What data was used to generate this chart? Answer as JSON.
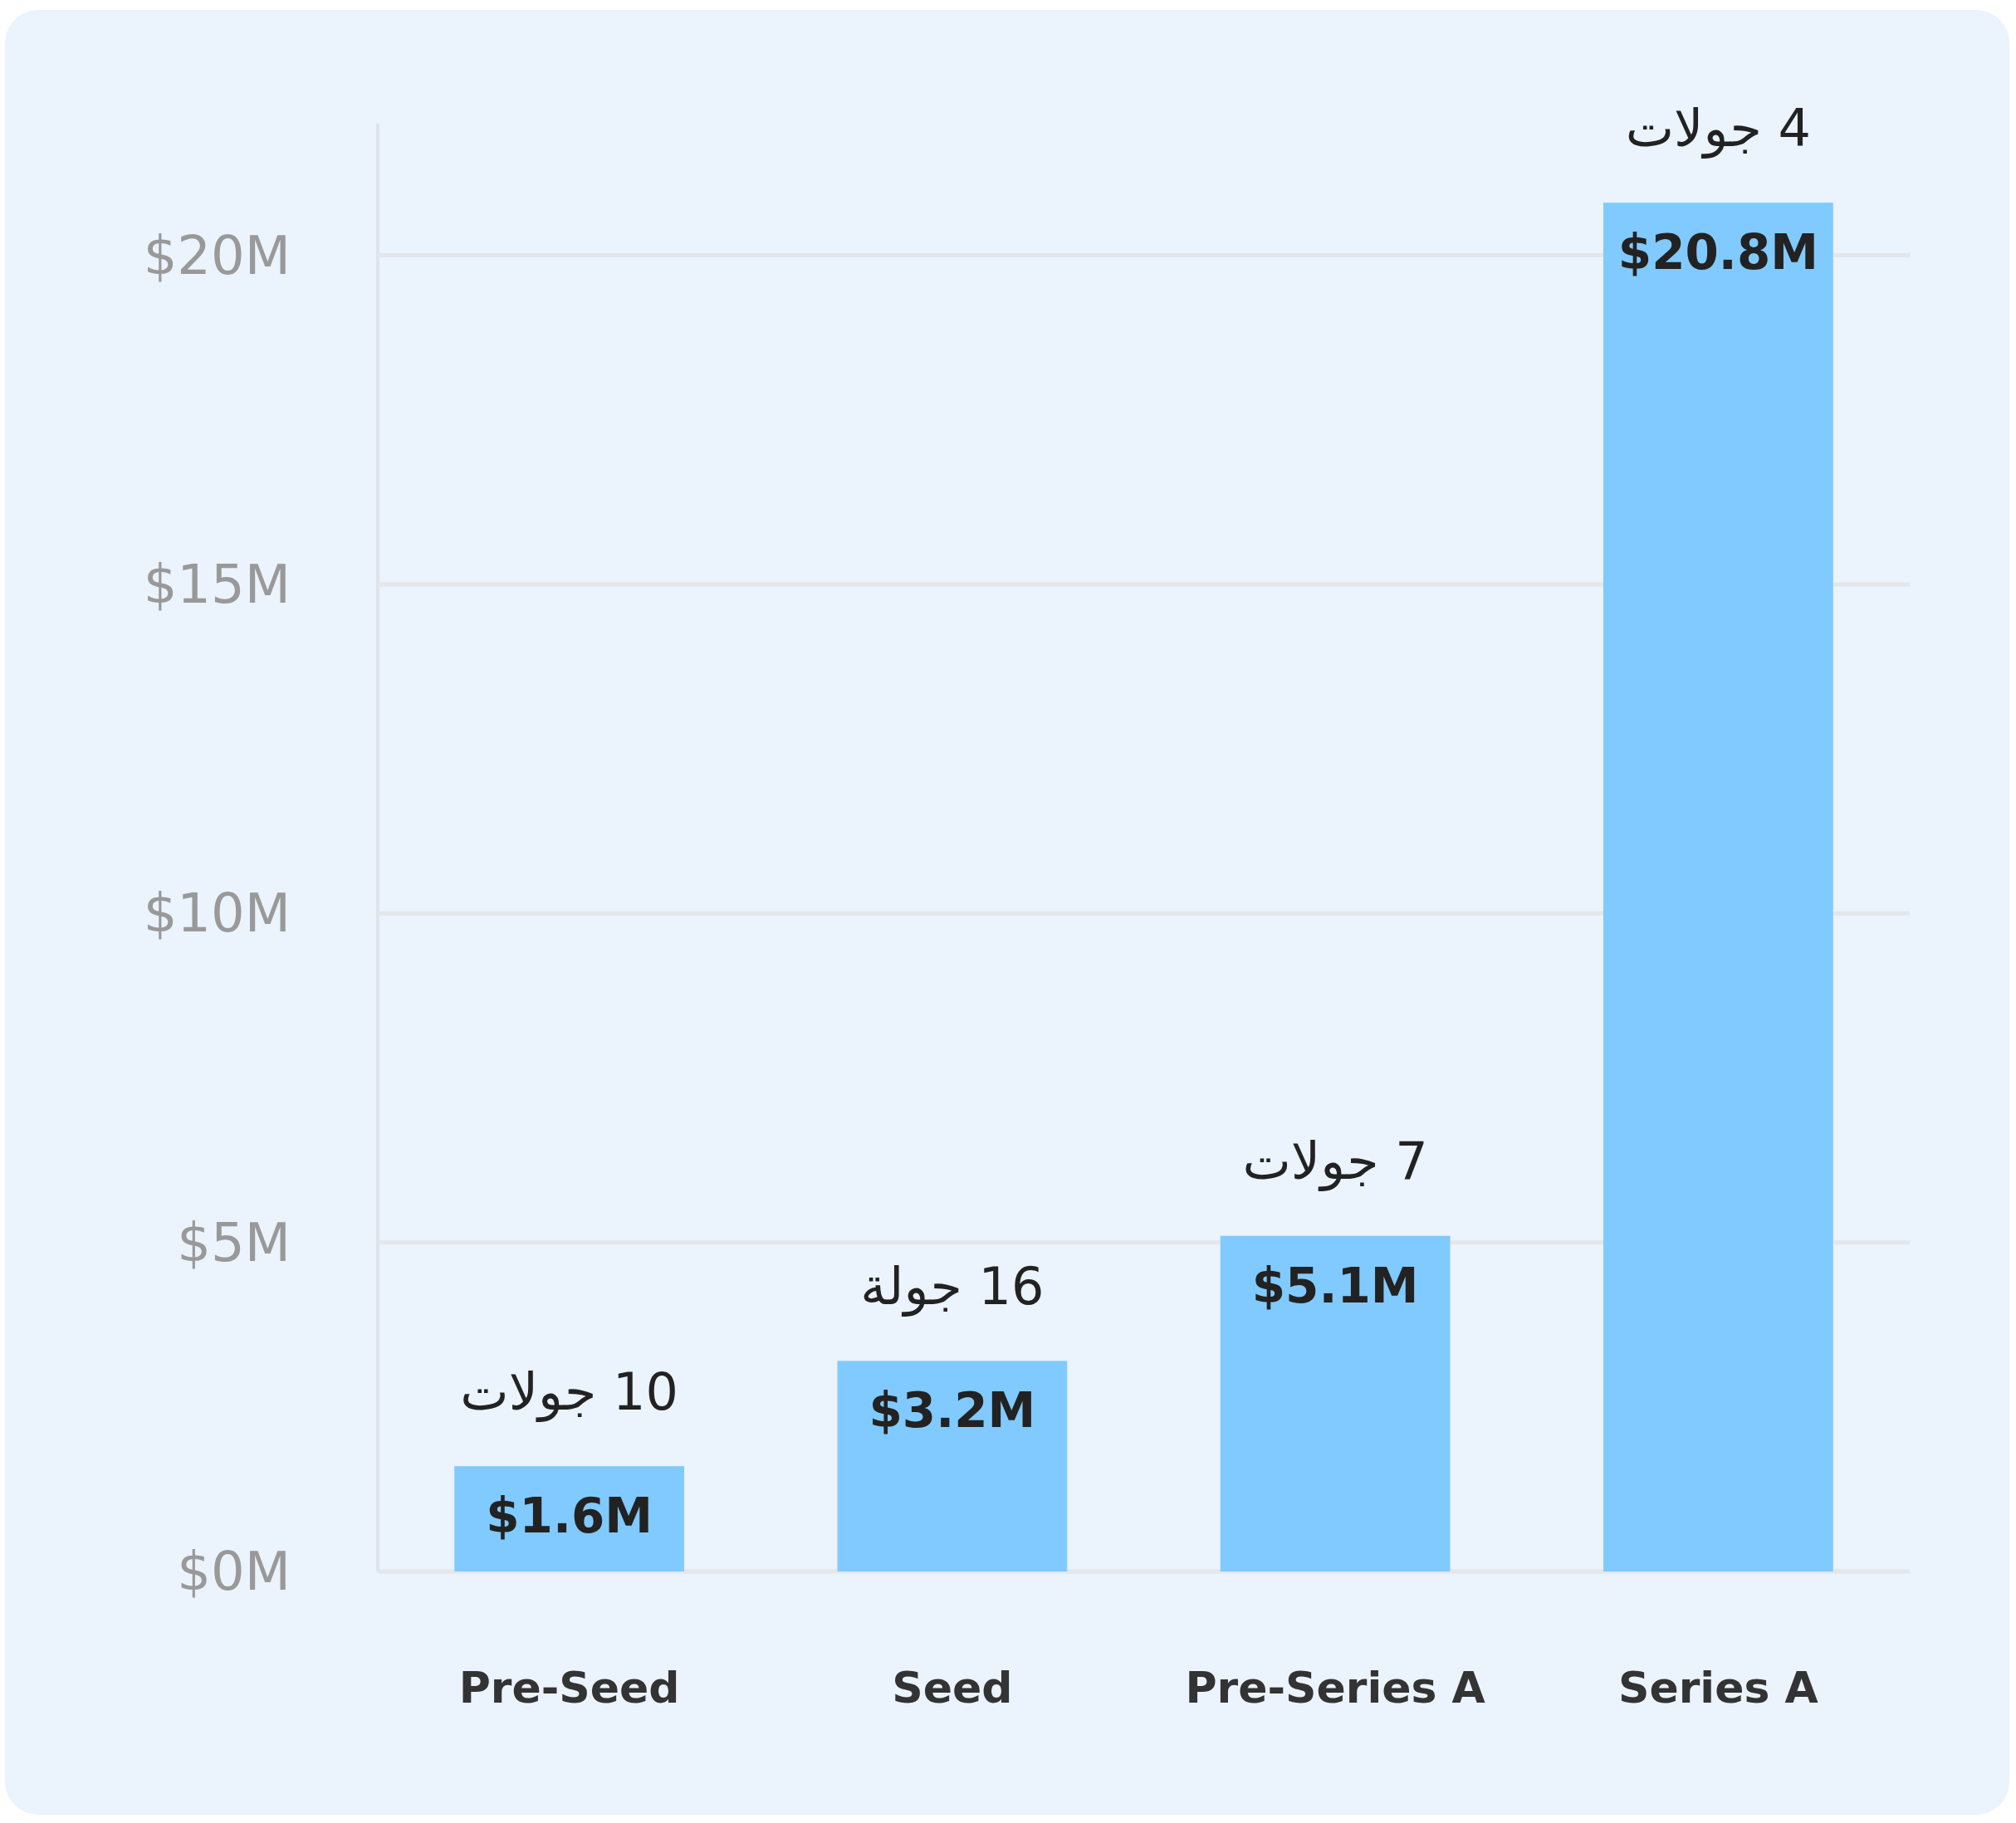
{
  "chart_data": {
    "type": "bar",
    "categories": [
      "Pre-Seed",
      "Seed",
      "Pre-Series A",
      "Series A"
    ],
    "values": [
      1.6,
      3.2,
      5.1,
      20.8
    ],
    "value_labels": [
      "$1.6M",
      "$3.2M",
      "$5.1M",
      "$20.8M"
    ],
    "color": "#80caff",
    "ylim": [
      0,
      22
    ],
    "yticks": [
      {
        "value": 0,
        "label": "$0M"
      },
      {
        "value": 5,
        "label": "$5M"
      },
      {
        "value": 10,
        "label": "$10M"
      },
      {
        "value": 15,
        "label": "$15M"
      },
      {
        "value": 20,
        "label": "$20M"
      }
    ],
    "grid": "y",
    "annotations": [
      {
        "text": "10 جولات",
        "x": "Pre-Seed",
        "y": 1.6
      },
      {
        "text": "16 جولة",
        "x": "Seed",
        "y": 3.2
      },
      {
        "text": "7 جولات",
        "x": "Pre-Series A",
        "y": 5.1
      },
      {
        "text": "4 جولات",
        "x": "Series A",
        "y": 20.8
      }
    ]
  }
}
